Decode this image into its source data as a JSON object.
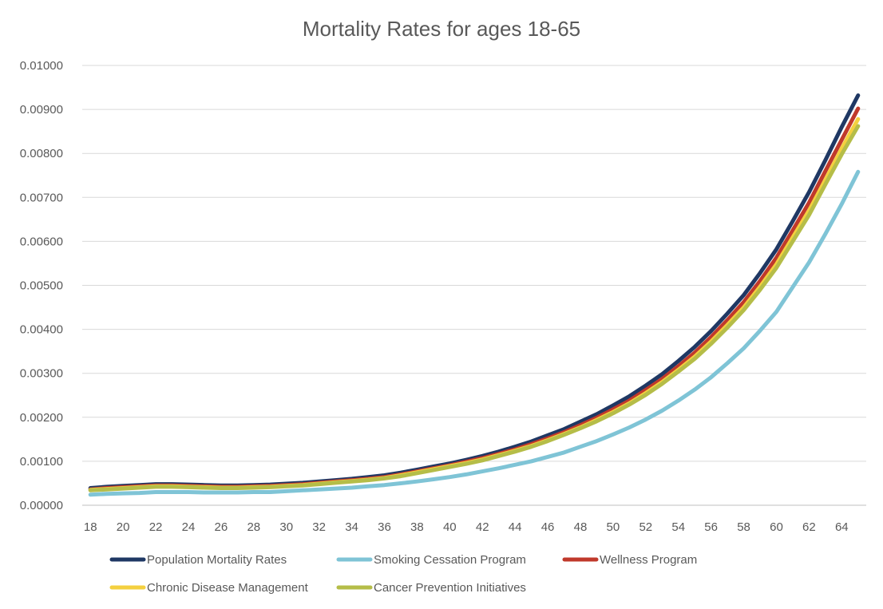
{
  "chart_data": {
    "type": "line",
    "title": "Mortality Rates for ages 18-65",
    "xlabel": "",
    "ylabel": "",
    "x": [
      18,
      19,
      20,
      21,
      22,
      23,
      24,
      25,
      26,
      27,
      28,
      29,
      30,
      31,
      32,
      33,
      34,
      35,
      36,
      37,
      38,
      39,
      40,
      41,
      42,
      43,
      44,
      45,
      46,
      47,
      48,
      49,
      50,
      51,
      52,
      53,
      54,
      55,
      56,
      57,
      58,
      59,
      60,
      61,
      62,
      63,
      64,
      65
    ],
    "x_ticks": [
      "18",
      "20",
      "22",
      "24",
      "26",
      "28",
      "30",
      "32",
      "34",
      "36",
      "38",
      "40",
      "42",
      "44",
      "46",
      "48",
      "50",
      "52",
      "54",
      "56",
      "58",
      "60",
      "62",
      "64"
    ],
    "ylim": [
      0,
      0.01
    ],
    "y_ticks": [
      "0.00000",
      "0.00100",
      "0.00200",
      "0.00300",
      "0.00400",
      "0.00500",
      "0.00600",
      "0.00700",
      "0.00800",
      "0.00900",
      "0.01000"
    ],
    "grid": true,
    "legend_position": "bottom",
    "series": [
      {
        "name": "Population Mortality Rates",
        "color": "#1f3864",
        "values": [
          0.00039,
          0.00042,
          0.00044,
          0.00046,
          0.00048,
          0.00048,
          0.00047,
          0.00046,
          0.00045,
          0.00045,
          0.00046,
          0.00047,
          0.00049,
          0.00051,
          0.00054,
          0.00057,
          0.0006,
          0.00064,
          0.00068,
          0.00074,
          0.00081,
          0.00088,
          0.00095,
          0.00103,
          0.00112,
          0.00122,
          0.00133,
          0.00145,
          0.00159,
          0.00173,
          0.0019,
          0.00207,
          0.00227,
          0.00248,
          0.00272,
          0.00298,
          0.00328,
          0.0036,
          0.00396,
          0.00436,
          0.00478,
          0.00528,
          0.00582,
          0.00646,
          0.00712,
          0.00785,
          0.0086,
          0.00932
        ]
      },
      {
        "name": "Smoking Cessation Program",
        "color": "#7fc4d6",
        "values": [
          0.00024,
          0.00026,
          0.00027,
          0.00028,
          0.0003,
          0.0003,
          0.0003,
          0.00029,
          0.00029,
          0.00029,
          0.0003,
          0.0003,
          0.00032,
          0.00034,
          0.00036,
          0.00038,
          0.0004,
          0.00043,
          0.00046,
          0.0005,
          0.00054,
          0.00059,
          0.00064,
          0.0007,
          0.00077,
          0.00084,
          0.00092,
          0.001,
          0.0011,
          0.0012,
          0.00133,
          0.00146,
          0.00161,
          0.00177,
          0.00195,
          0.00215,
          0.00238,
          0.00263,
          0.00291,
          0.00323,
          0.00357,
          0.00397,
          0.0044,
          0.00496,
          0.00552,
          0.00617,
          0.00685,
          0.00758
        ]
      },
      {
        "name": "Wellness Program",
        "color": "#c0392b",
        "values": [
          0.00036,
          0.00039,
          0.00041,
          0.00043,
          0.00045,
          0.00045,
          0.00044,
          0.00043,
          0.00042,
          0.00042,
          0.00043,
          0.00044,
          0.00046,
          0.00048,
          0.00051,
          0.00054,
          0.00057,
          0.0006,
          0.00064,
          0.0007,
          0.00077,
          0.00084,
          0.00091,
          0.00099,
          0.00107,
          0.00117,
          0.00127,
          0.00139,
          0.00152,
          0.00166,
          0.00182,
          0.00199,
          0.00218,
          0.00238,
          0.00262,
          0.00287,
          0.00316,
          0.00347,
          0.00382,
          0.00421,
          0.00462,
          0.0051,
          0.00563,
          0.00625,
          0.00688,
          0.0076,
          0.00831,
          0.00902
        ]
      },
      {
        "name": "Chronic Disease Management",
        "color": "#f4d03f",
        "values": [
          0.00035,
          0.00037,
          0.00039,
          0.00041,
          0.00043,
          0.00043,
          0.00042,
          0.00041,
          0.0004,
          0.0004,
          0.00041,
          0.00042,
          0.00044,
          0.00046,
          0.00049,
          0.00052,
          0.00055,
          0.00058,
          0.00062,
          0.00068,
          0.00075,
          0.00082,
          0.00089,
          0.00096,
          0.00104,
          0.00114,
          0.00124,
          0.00135,
          0.00148,
          0.00162,
          0.00177,
          0.00194,
          0.00212,
          0.00232,
          0.00255,
          0.0028,
          0.00308,
          0.00338,
          0.00372,
          0.0041,
          0.0045,
          0.00497,
          0.00548,
          0.00609,
          0.0067,
          0.0074,
          0.00811,
          0.00878
        ]
      },
      {
        "name": "Cancer Prevention Initiatives",
        "color": "#b5bd48",
        "values": [
          0.00034,
          0.00036,
          0.00038,
          0.0004,
          0.00042,
          0.00042,
          0.00041,
          0.0004,
          0.00039,
          0.00039,
          0.0004,
          0.00041,
          0.00043,
          0.00045,
          0.00048,
          0.00051,
          0.00054,
          0.00057,
          0.00061,
          0.00066,
          0.00073,
          0.0008,
          0.00087,
          0.00094,
          0.00102,
          0.00112,
          0.00122,
          0.00133,
          0.00146,
          0.0016,
          0.00175,
          0.00191,
          0.00209,
          0.00229,
          0.00251,
          0.00276,
          0.00304,
          0.00333,
          0.00367,
          0.00404,
          0.00444,
          0.0049,
          0.0054,
          0.006,
          0.0066,
          0.0073,
          0.00798,
          0.00862
        ]
      }
    ]
  }
}
